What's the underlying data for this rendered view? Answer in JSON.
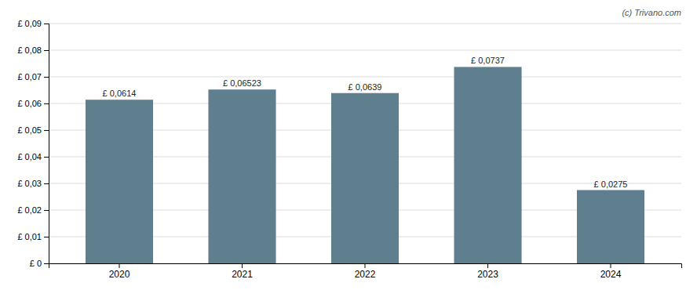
{
  "chart_data": {
    "type": "bar",
    "categories": [
      "2020",
      "2021",
      "2022",
      "2023",
      "2024"
    ],
    "values": [
      0.0614,
      0.06523,
      0.0639,
      0.0737,
      0.0275
    ],
    "value_labels": [
      "£ 0,0614",
      "£ 0,06523",
      "£ 0,0639",
      "£ 0,0737",
      "£ 0,0275"
    ],
    "data_labels": true,
    "color": "#5f7f8f",
    "ylim": [
      0,
      0.09
    ],
    "yticks": [
      {
        "value": 0,
        "label": "£ 0"
      },
      {
        "value": 0.01,
        "label": "£ 0,01"
      },
      {
        "value": 0.02,
        "label": "£ 0,02"
      },
      {
        "value": 0.03,
        "label": "£ 0,03"
      },
      {
        "value": 0.04,
        "label": "£ 0,04"
      },
      {
        "value": 0.05,
        "label": "£ 0,05"
      },
      {
        "value": 0.06,
        "label": "£ 0,06"
      },
      {
        "value": 0.07,
        "label": "£ 0,07"
      },
      {
        "value": 0.08,
        "label": "£ 0,08"
      },
      {
        "value": 0.09,
        "label": "£ 0,09"
      }
    ],
    "grid": true,
    "annotations": [
      "(c) Trivano.com"
    ]
  }
}
